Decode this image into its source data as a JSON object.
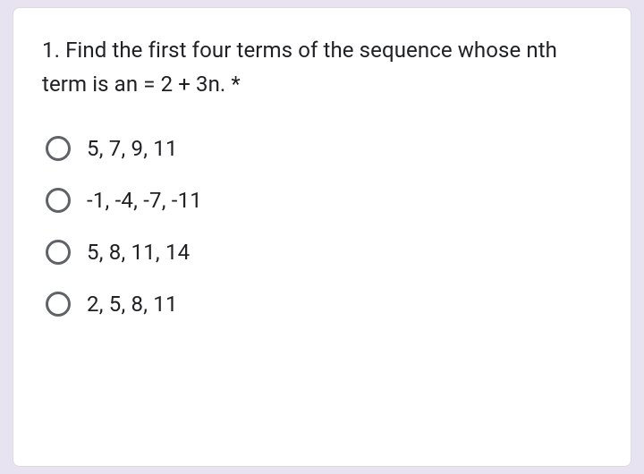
{
  "question": {
    "text": "1. Find the first four terms of the sequence whose nth term is an = 2 + 3n.",
    "required_marker": " *",
    "text_color": "#202124",
    "fontsize": 24
  },
  "options": [
    {
      "label": "5, 7, 9, 11",
      "selected": false
    },
    {
      "label": "-1, -4, -7, -11",
      "selected": false
    },
    {
      "label": "5, 8, 11, 14",
      "selected": false
    },
    {
      "label": "2, 5, 8, 11",
      "selected": false
    }
  ],
  "styling": {
    "background_color": "#e8e3f0",
    "card_background": "#ffffff",
    "card_border": "#dadce0",
    "radio_border_color": "#5f6368",
    "option_fontsize": 24,
    "option_text_color": "#202124"
  }
}
